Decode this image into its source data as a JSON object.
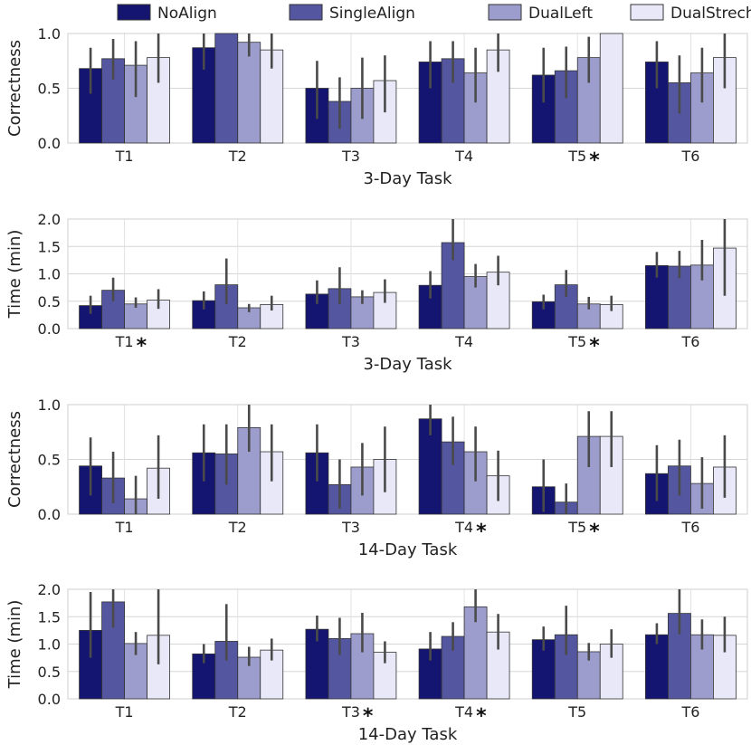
{
  "legend": [
    "NoAlign",
    "SingleAlign",
    "DualLeft",
    "DualStrech"
  ],
  "colors": [
    "#141570",
    "#5456a0",
    "#9c9dcc",
    "#e8e8f8"
  ],
  "chart_data": [
    {
      "type": "bar",
      "ylabel": "Correctness",
      "xlabel": "3-Day Task",
      "ylim": [
        0,
        1.0
      ],
      "yticks": [
        "0.0",
        "0.5",
        "1.0"
      ],
      "categories": [
        "T1",
        "T2",
        "T3",
        "T4",
        "T5",
        "T6"
      ],
      "starred": [
        false,
        false,
        false,
        false,
        true,
        false
      ],
      "series": [
        {
          "name": "NoAlign",
          "values": [
            0.68,
            0.87,
            0.5,
            0.74,
            0.62,
            0.74
          ],
          "err_low": [
            0.45,
            0.67,
            0.22,
            0.5,
            0.37,
            0.5
          ],
          "err_high": [
            0.87,
            1.0,
            0.75,
            0.93,
            0.87,
            0.93
          ]
        },
        {
          "name": "SingleAlign",
          "values": [
            0.77,
            1.0,
            0.38,
            0.77,
            0.66,
            0.55
          ],
          "err_low": [
            0.58,
            1.0,
            0.13,
            0.55,
            0.41,
            0.27
          ],
          "err_high": [
            0.95,
            1.0,
            0.6,
            0.93,
            0.88,
            0.8
          ]
        },
        {
          "name": "DualLeft",
          "values": [
            0.71,
            0.92,
            0.5,
            0.64,
            0.78,
            0.64
          ],
          "err_low": [
            0.42,
            0.79,
            0.22,
            0.37,
            0.55,
            0.37
          ],
          "err_high": [
            0.93,
            1.0,
            0.78,
            0.87,
            0.97,
            0.87
          ]
        },
        {
          "name": "DualStrech",
          "values": [
            0.78,
            0.85,
            0.57,
            0.85,
            1.0,
            0.78
          ],
          "err_low": [
            0.55,
            0.68,
            0.28,
            0.65,
            1.0,
            0.5
          ],
          "err_high": [
            1.0,
            1.0,
            0.8,
            1.0,
            1.0,
            1.0
          ]
        }
      ]
    },
    {
      "type": "bar",
      "ylabel": "Time (min)",
      "xlabel": "3-Day Task",
      "ylim": [
        0,
        2.0
      ],
      "yticks": [
        "0.0",
        "0.5",
        "1.0",
        "1.5",
        "2.0"
      ],
      "categories": [
        "T1",
        "T2",
        "T3",
        "T4",
        "T5",
        "T6"
      ],
      "starred": [
        true,
        false,
        false,
        false,
        true,
        false
      ],
      "series": [
        {
          "name": "NoAlign",
          "values": [
            0.42,
            0.51,
            0.63,
            0.79,
            0.49,
            1.15
          ],
          "err_low": [
            0.27,
            0.35,
            0.45,
            0.55,
            0.35,
            0.93
          ],
          "err_high": [
            0.6,
            0.68,
            0.88,
            1.05,
            0.62,
            1.4
          ]
        },
        {
          "name": "SingleAlign",
          "values": [
            0.7,
            0.8,
            0.73,
            1.57,
            0.8,
            1.14
          ],
          "err_low": [
            0.5,
            0.45,
            0.45,
            1.25,
            0.58,
            0.92
          ],
          "err_high": [
            0.93,
            1.28,
            1.12,
            2.0,
            1.07,
            1.42
          ]
        },
        {
          "name": "DualLeft",
          "values": [
            0.45,
            0.38,
            0.58,
            0.95,
            0.45,
            1.16
          ],
          "err_low": [
            0.38,
            0.3,
            0.45,
            0.75,
            0.35,
            0.88
          ],
          "err_high": [
            0.57,
            0.45,
            0.7,
            1.18,
            0.58,
            1.62
          ]
        },
        {
          "name": "DualStrech",
          "values": [
            0.52,
            0.44,
            0.66,
            1.03,
            0.44,
            1.47
          ],
          "err_low": [
            0.36,
            0.33,
            0.47,
            0.79,
            0.32,
            0.6
          ],
          "err_high": [
            0.72,
            0.6,
            0.9,
            1.33,
            0.6,
            2.0
          ]
        }
      ]
    },
    {
      "type": "bar",
      "ylabel": "Correctness",
      "xlabel": "14-Day Task",
      "ylim": [
        0,
        1.0
      ],
      "yticks": [
        "0.0",
        "0.5",
        "1.0"
      ],
      "categories": [
        "T1",
        "T2",
        "T3",
        "T4",
        "T5",
        "T6"
      ],
      "starred": [
        false,
        false,
        false,
        true,
        true,
        false
      ],
      "series": [
        {
          "name": "NoAlign",
          "values": [
            0.44,
            0.56,
            0.56,
            0.87,
            0.25,
            0.37
          ],
          "err_low": [
            0.17,
            0.3,
            0.3,
            0.72,
            0.02,
            0.12
          ],
          "err_high": [
            0.7,
            0.82,
            0.82,
            1.0,
            0.5,
            0.63
          ]
        },
        {
          "name": "SingleAlign",
          "values": [
            0.33,
            0.55,
            0.27,
            0.66,
            0.11,
            0.44
          ],
          "err_low": [
            0.1,
            0.27,
            0.05,
            0.45,
            0.0,
            0.17
          ],
          "err_high": [
            0.57,
            0.82,
            0.5,
            0.89,
            0.28,
            0.68
          ]
        },
        {
          "name": "DualLeft",
          "values": [
            0.14,
            0.79,
            0.43,
            0.57,
            0.71,
            0.28
          ],
          "err_low": [
            0.0,
            0.57,
            0.17,
            0.3,
            0.43,
            0.05
          ],
          "err_high": [
            0.35,
            1.0,
            0.65,
            0.8,
            0.94,
            0.52
          ]
        },
        {
          "name": "DualStrech",
          "values": [
            0.42,
            0.57,
            0.5,
            0.35,
            0.71,
            0.43
          ],
          "err_low": [
            0.14,
            0.3,
            0.2,
            0.12,
            0.43,
            0.15
          ],
          "err_high": [
            0.72,
            0.82,
            0.8,
            0.58,
            0.94,
            0.72
          ]
        }
      ]
    },
    {
      "type": "bar",
      "ylabel": "Time (min)",
      "xlabel": "14-Day Task",
      "ylim": [
        0,
        2.0
      ],
      "yticks": [
        "0.0",
        "0.5",
        "1.0",
        "1.5",
        "2.0"
      ],
      "categories": [
        "T1",
        "T2",
        "T3",
        "T4",
        "T5",
        "T6"
      ],
      "starred": [
        false,
        false,
        true,
        true,
        false,
        false
      ],
      "series": [
        {
          "name": "NoAlign",
          "values": [
            1.25,
            0.82,
            1.27,
            0.91,
            1.08,
            1.17
          ],
          "err_low": [
            0.75,
            0.65,
            1.05,
            0.7,
            0.88,
            1.0
          ],
          "err_high": [
            1.95,
            1.0,
            1.52,
            1.22,
            1.32,
            1.38
          ]
        },
        {
          "name": "SingleAlign",
          "values": [
            1.77,
            1.05,
            1.1,
            1.14,
            1.17,
            1.56
          ],
          "err_low": [
            1.3,
            0.7,
            0.8,
            0.88,
            0.8,
            1.18
          ],
          "err_high": [
            2.0,
            1.73,
            1.48,
            1.4,
            1.7,
            2.0
          ]
        },
        {
          "name": "DualLeft",
          "values": [
            1.01,
            0.76,
            1.19,
            1.68,
            0.86,
            1.17
          ],
          "err_low": [
            0.8,
            0.6,
            0.85,
            1.4,
            0.7,
            0.9
          ],
          "err_high": [
            1.22,
            0.95,
            1.57,
            2.0,
            1.02,
            1.45
          ]
        },
        {
          "name": "DualStrech",
          "values": [
            1.16,
            0.89,
            0.85,
            1.22,
            1.0,
            1.16
          ],
          "err_low": [
            0.63,
            0.7,
            0.65,
            0.9,
            0.75,
            0.85
          ],
          "err_high": [
            2.0,
            1.1,
            1.05,
            1.55,
            1.27,
            1.5
          ]
        }
      ]
    }
  ]
}
